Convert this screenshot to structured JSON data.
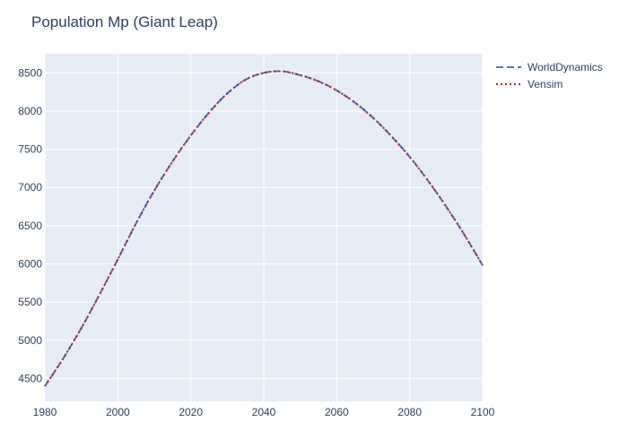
{
  "chart_data": {
    "type": "line",
    "title": "Population Mp (Giant Leap)",
    "xlabel": "",
    "ylabel": "",
    "xlim": [
      1980,
      2100
    ],
    "ylim": [
      4200,
      8750
    ],
    "x_ticks": [
      1980,
      2000,
      2020,
      2040,
      2060,
      2080,
      2100
    ],
    "y_ticks": [
      4500,
      5000,
      5500,
      6000,
      6500,
      7000,
      7500,
      8000,
      8500
    ],
    "grid": true,
    "legend_position": "top-right",
    "plot_bgcolor": "#E5ECF6",
    "x": [
      1980,
      1985,
      1990,
      1995,
      2000,
      2005,
      2010,
      2015,
      2020,
      2025,
      2030,
      2035,
      2040,
      2045,
      2050,
      2055,
      2060,
      2065,
      2070,
      2075,
      2080,
      2085,
      2090,
      2095,
      2100
    ],
    "series": [
      {
        "name": "WorldDynamics",
        "color": "#4c72c9",
        "dash": "dash",
        "values": [
          4400,
          4760,
          5160,
          5600,
          6060,
          6530,
          6960,
          7340,
          7680,
          7980,
          8230,
          8410,
          8500,
          8520,
          8470,
          8390,
          8270,
          8110,
          7910,
          7670,
          7400,
          7090,
          6750,
          6380,
          5980
        ]
      },
      {
        "name": "Vensim",
        "color": "#b22222",
        "dash": "dot",
        "values": [
          4400,
          4760,
          5160,
          5600,
          6060,
          6530,
          6960,
          7340,
          7680,
          7980,
          8230,
          8410,
          8500,
          8520,
          8470,
          8390,
          8270,
          8110,
          7910,
          7670,
          7400,
          7090,
          6750,
          6380,
          5980
        ]
      }
    ]
  }
}
